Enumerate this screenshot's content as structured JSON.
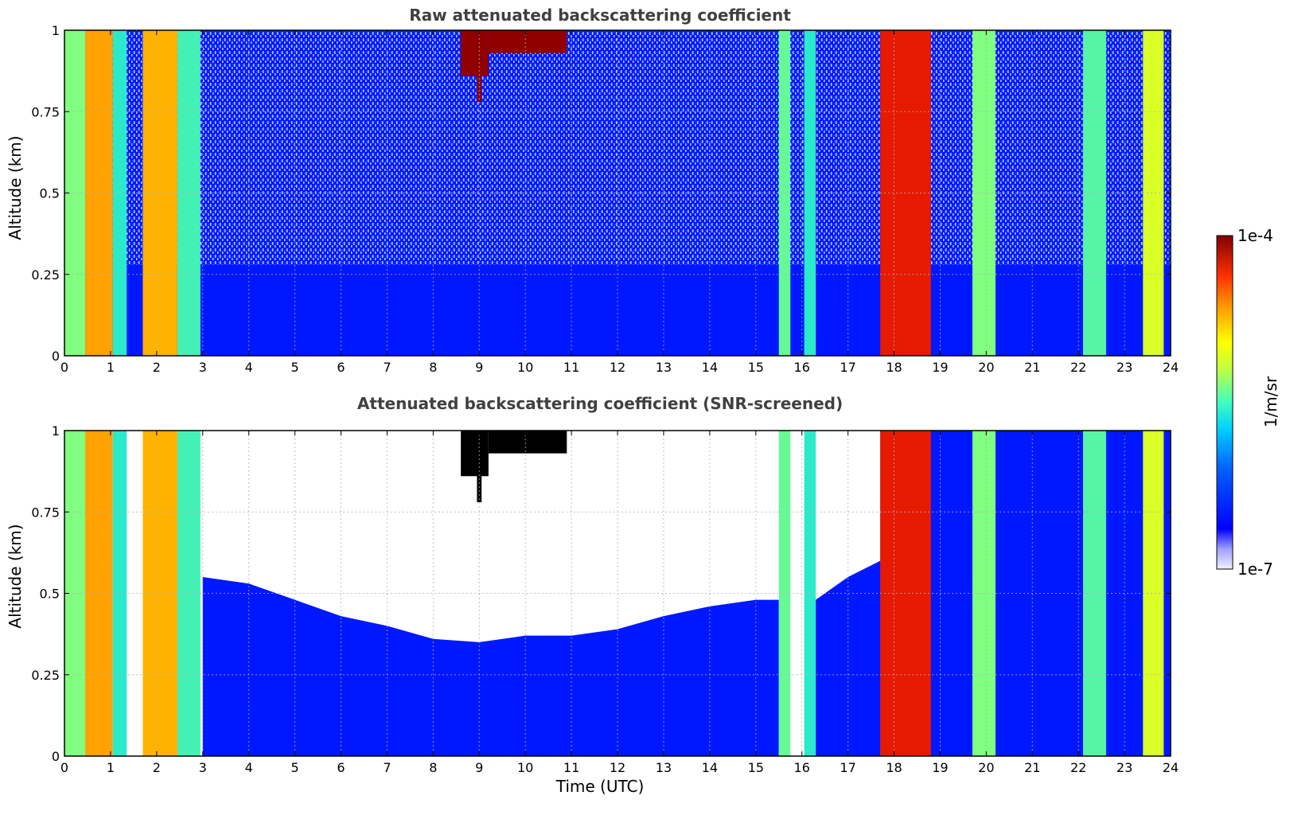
{
  "chart_data": [
    {
      "type": "heatmap",
      "title": "Raw attenuated backscattering coefficient",
      "xlabel": "",
      "ylabel": "Altitude (km)",
      "xlim": [
        0,
        24
      ],
      "ylim": [
        0,
        1
      ],
      "x_ticks": [
        "0",
        "1",
        "2",
        "3",
        "4",
        "5",
        "6",
        "7",
        "8",
        "9",
        "10",
        "11",
        "12",
        "13",
        "14",
        "15",
        "16",
        "17",
        "18",
        "19",
        "20",
        "21",
        "22",
        "23",
        "24"
      ],
      "y_ticks": [
        "0",
        "0.25",
        "0.5",
        "0.75",
        "1"
      ],
      "grid": true,
      "columns": [
        {
          "t0": 0.0,
          "t1": 0.45,
          "level": 0.55
        },
        {
          "t0": 0.45,
          "t1": 1.05,
          "level": 0.76
        },
        {
          "t0": 1.05,
          "t1": 1.35,
          "level": 0.45
        },
        {
          "t0": 1.35,
          "t1": 1.7,
          "level": 0.2
        },
        {
          "t0": 1.7,
          "t1": 2.45,
          "level": 0.74
        },
        {
          "t0": 2.45,
          "t1": 2.95,
          "level": 0.48
        },
        {
          "t0": 2.95,
          "t1": 15.5,
          "level": 0.2
        },
        {
          "t0": 15.5,
          "t1": 15.75,
          "level": 0.52
        },
        {
          "t0": 15.75,
          "t1": 16.05,
          "level": 0.3
        },
        {
          "t0": 16.05,
          "t1": 16.3,
          "level": 0.45
        },
        {
          "t0": 16.3,
          "t1": 17.7,
          "level": 0.2
        },
        {
          "t0": 17.7,
          "t1": 18.8,
          "level": 0.92
        },
        {
          "t0": 18.8,
          "t1": 19.7,
          "level": 0.22
        },
        {
          "t0": 19.7,
          "t1": 20.2,
          "level": 0.55
        },
        {
          "t0": 20.2,
          "t1": 22.1,
          "level": 0.22
        },
        {
          "t0": 22.1,
          "t1": 22.6,
          "level": 0.5
        },
        {
          "t0": 22.6,
          "t1": 23.4,
          "level": 0.24
        },
        {
          "t0": 23.4,
          "t1": 23.85,
          "level": 0.62
        }
      ],
      "cloud_top_segments": [
        {
          "t0": 8.6,
          "t1": 9.2,
          "h0": 0.86,
          "h1": 1.0
        },
        {
          "t0": 9.2,
          "t1": 10.9,
          "h0": 0.93,
          "h1": 1.0
        },
        {
          "t0": 8.95,
          "t1": 9.05,
          "h0": 0.78,
          "h1": 1.0
        }
      ]
    },
    {
      "type": "heatmap",
      "title": "Attenuated backscattering coefficient (SNR-screened)",
      "xlabel": "Time (UTC)",
      "ylabel": "Altitude (km)",
      "xlim": [
        0,
        24
      ],
      "ylim": [
        0,
        1
      ],
      "x_ticks": [
        "0",
        "1",
        "2",
        "3",
        "4",
        "5",
        "6",
        "7",
        "8",
        "9",
        "10",
        "11",
        "12",
        "13",
        "14",
        "15",
        "16",
        "17",
        "18",
        "19",
        "20",
        "21",
        "22",
        "23",
        "24"
      ],
      "y_ticks": [
        "0",
        "0.25",
        "0.5",
        "0.75",
        "1"
      ],
      "grid": true,
      "screened_boundary_km": [
        {
          "t": 3.0,
          "h": 0.55
        },
        {
          "t": 4.0,
          "h": 0.53
        },
        {
          "t": 5.0,
          "h": 0.48
        },
        {
          "t": 6.0,
          "h": 0.43
        },
        {
          "t": 7.0,
          "h": 0.4
        },
        {
          "t": 8.0,
          "h": 0.36
        },
        {
          "t": 9.0,
          "h": 0.35
        },
        {
          "t": 10.0,
          "h": 0.37
        },
        {
          "t": 11.0,
          "h": 0.37
        },
        {
          "t": 12.0,
          "h": 0.39
        },
        {
          "t": 13.0,
          "h": 0.43
        },
        {
          "t": 14.0,
          "h": 0.46
        },
        {
          "t": 15.0,
          "h": 0.48
        },
        {
          "t": 15.5,
          "h": 0.48
        }
      ],
      "screened_boundary_2_km": [
        {
          "t": 16.3,
          "h": 0.48
        },
        {
          "t": 17.0,
          "h": 0.55
        },
        {
          "t": 17.7,
          "h": 0.6
        }
      ]
    }
  ],
  "colorbar": {
    "label": "1/m/sr",
    "max_label": "1e-4",
    "min_label": "1e-7",
    "scale": "log",
    "range": [
      1e-07,
      0.0001
    ]
  }
}
